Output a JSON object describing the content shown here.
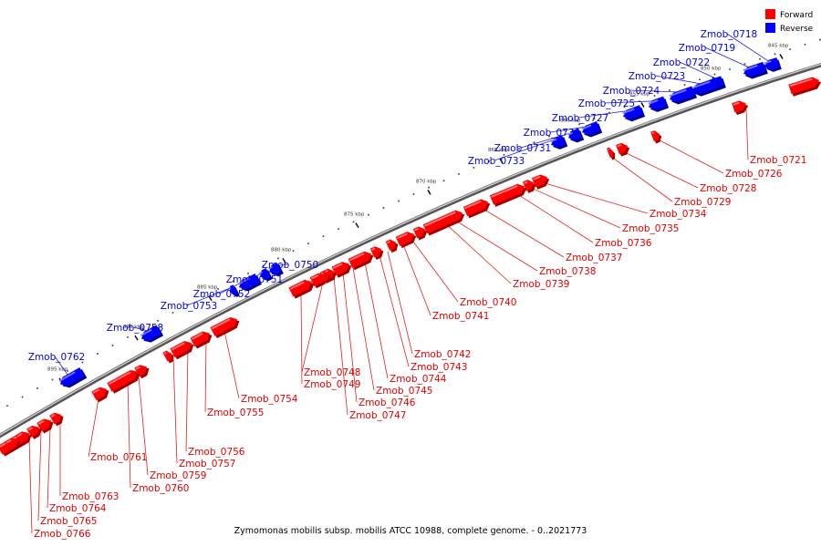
{
  "colors": {
    "forward": "#ff0000",
    "reverse": "#0000ff",
    "forward_line": "#e02020",
    "reverse_line": "#2020e0"
  },
  "legend": {
    "forward_label": "Forward",
    "reverse_label": "Reverse"
  },
  "caption": "Zymomonas mobilis subsp. mobilis ATCC 10988, complete genome. - 0..2021773",
  "kbp_marks": [
    "845 kbp",
    "850 kbp",
    "855 kbp",
    "860 kbp",
    "865 kbp",
    "870 kbp",
    "875 kbp",
    "880 kbp",
    "885 kbp",
    "890 kbp",
    "895 kbp"
  ],
  "reverse_genes": [
    "Zmob_0718",
    "Zmob_0719",
    "Zmob_0722",
    "Zmob_0723",
    "Zmob_0724",
    "Zmob_0725",
    "Zmob_0727",
    "Zmob_0730",
    "Zmob_0731",
    "Zmob_0733",
    "Zmob_0750",
    "Zmob_0751",
    "Zmob_0752",
    "Zmob_0753",
    "Zmob_0758",
    "Zmob_0762"
  ],
  "forward_genes": [
    "Zmob_0721",
    "Zmob_0726",
    "Zmob_0728",
    "Zmob_0729",
    "Zmob_0734",
    "Zmob_0735",
    "Zmob_0736",
    "Zmob_0737",
    "Zmob_0738",
    "Zmob_0739",
    "Zmob_0740",
    "Zmob_0741",
    "Zmob_0742",
    "Zmob_0743",
    "Zmob_0744",
    "Zmob_0745",
    "Zmob_0746",
    "Zmob_0747",
    "Zmob_0748",
    "Zmob_0749",
    "Zmob_0754",
    "Zmob_0755",
    "Zmob_0756",
    "Zmob_0757",
    "Zmob_0759",
    "Zmob_0760",
    "Zmob_0761",
    "Zmob_0763",
    "Zmob_0764",
    "Zmob_0765",
    "Zmob_0766"
  ]
}
